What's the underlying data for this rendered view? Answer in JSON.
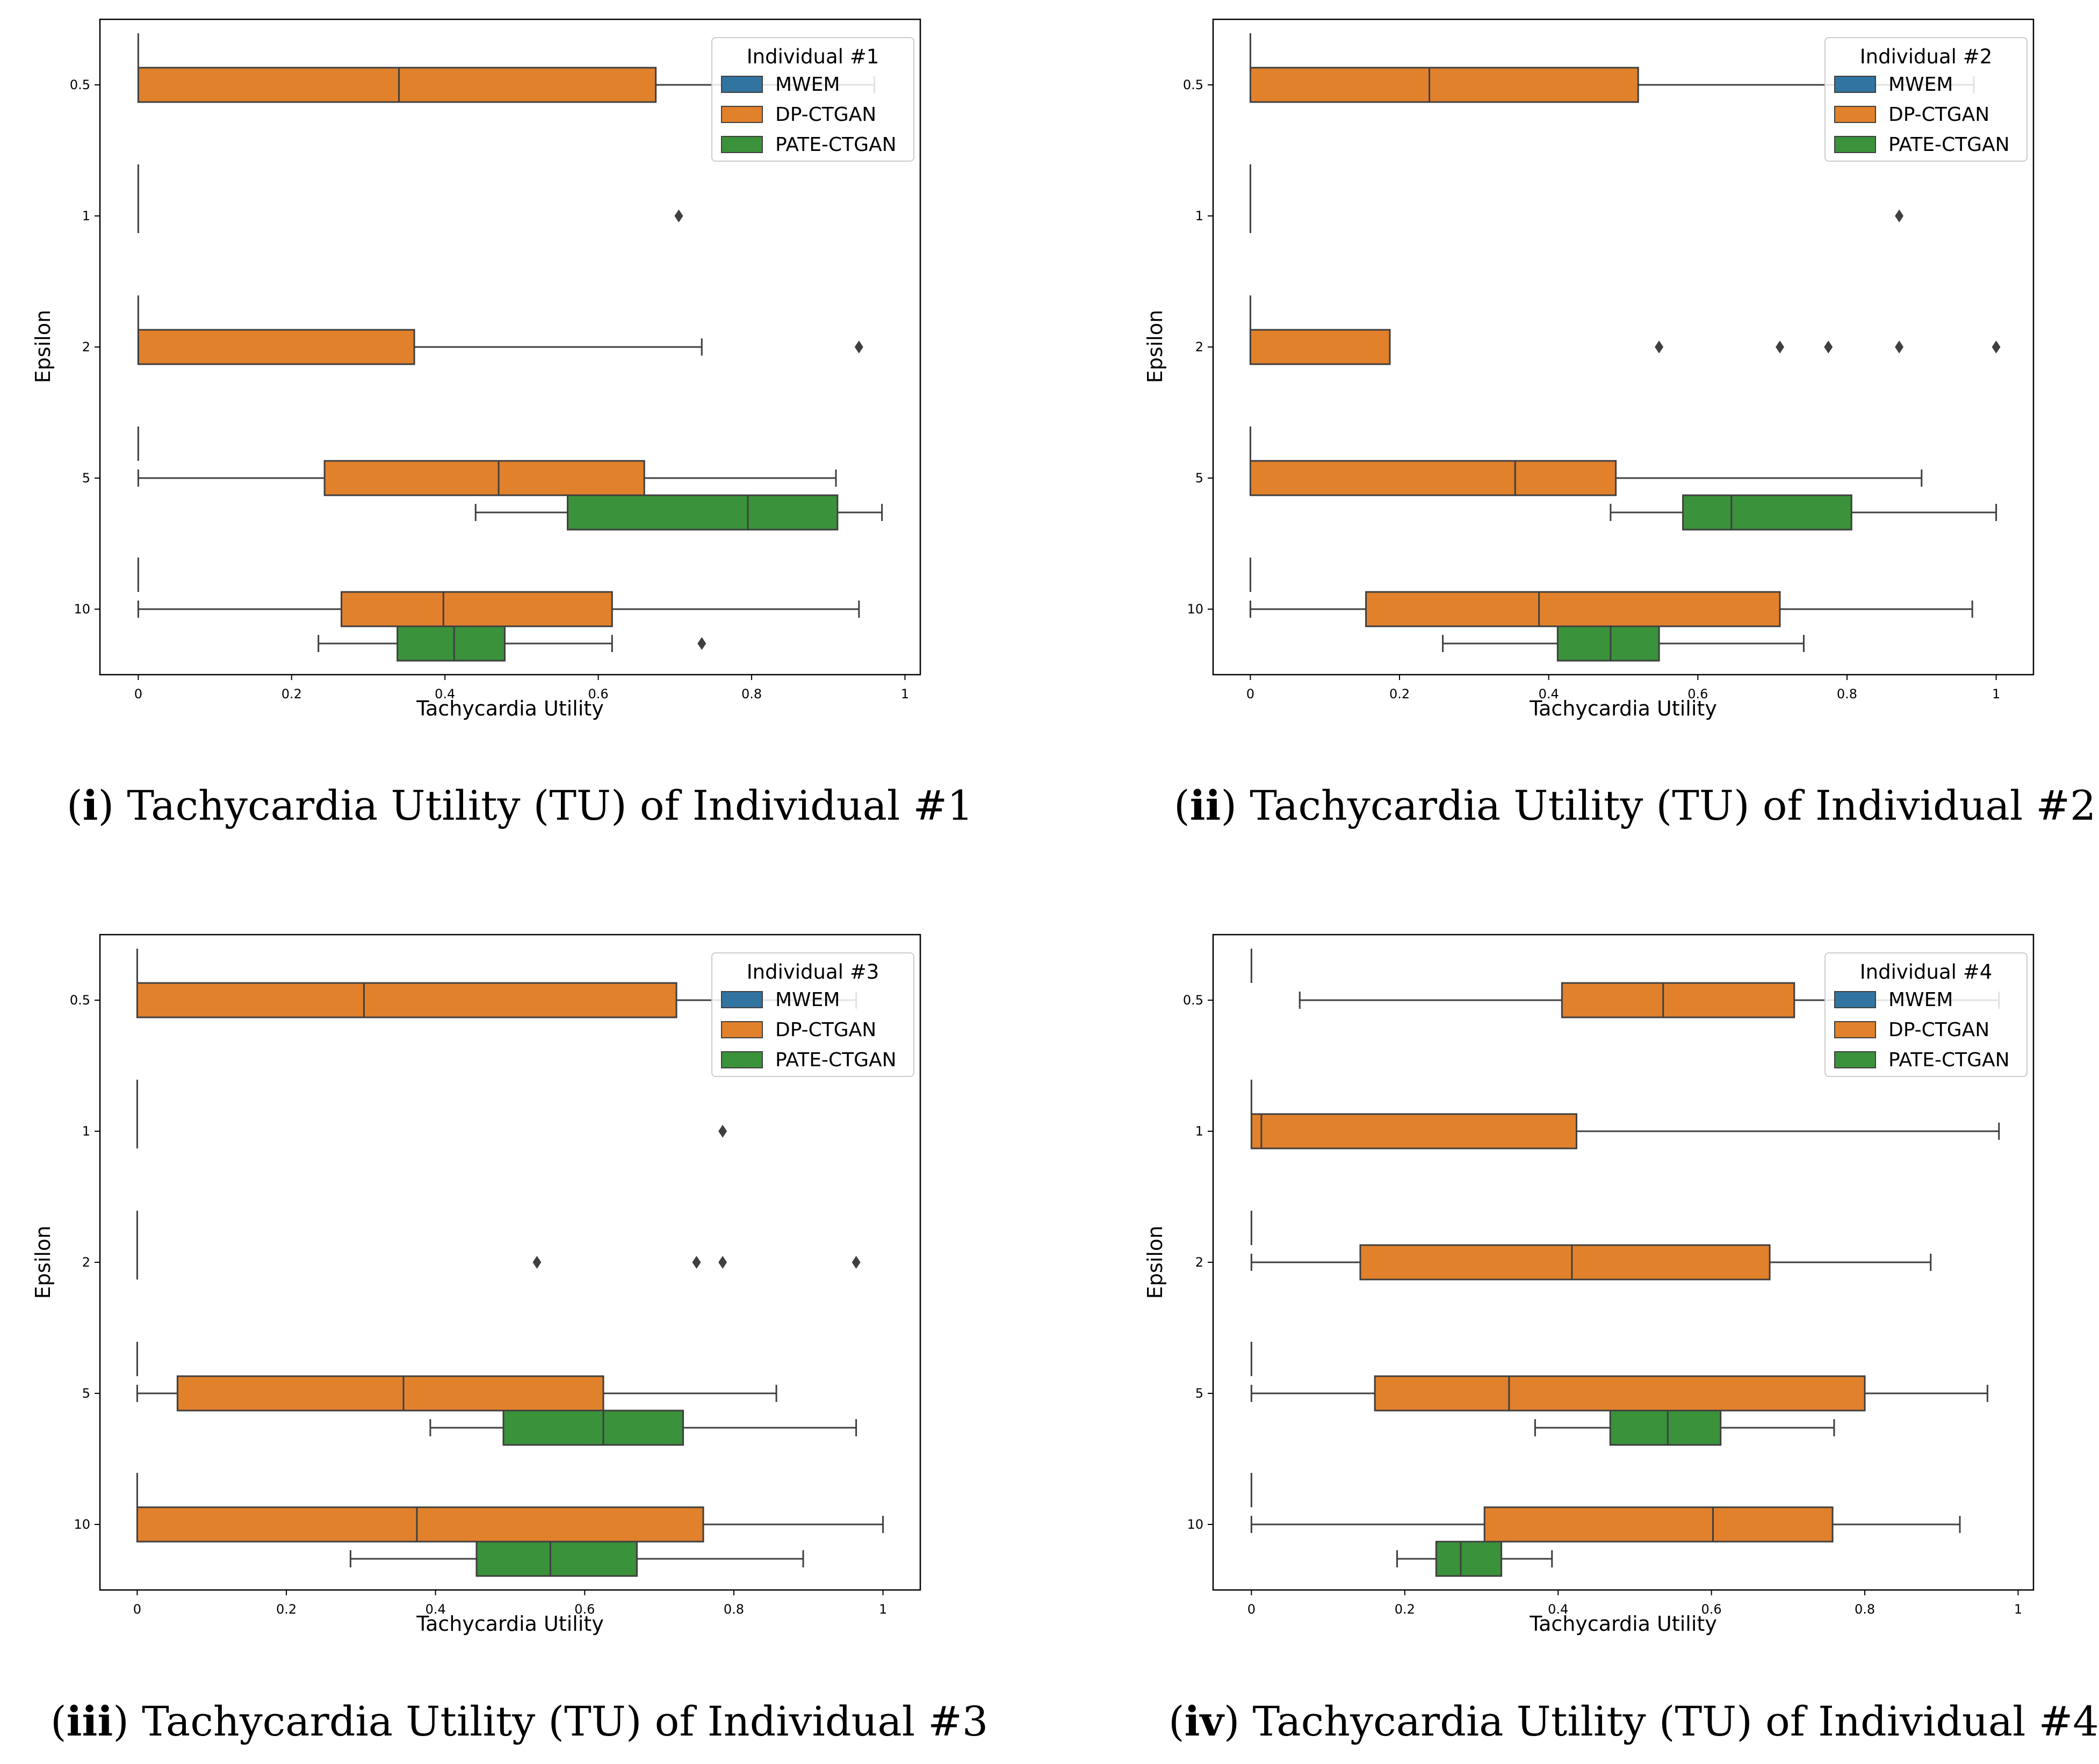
{
  "colors": {
    "MWEM": "#3274a1",
    "DP-CTGAN": "#e1812c",
    "PATE-CTGAN": "#3a923a",
    "line": "#3f3f3f",
    "frame": "#000000"
  },
  "chart_data": [
    {
      "type": "box",
      "orientation": "horizontal",
      "xlabel": "Tachycardia Utility",
      "ylabel": "Epsilon",
      "xlim": [
        -0.05,
        1.02
      ],
      "x_ticks": [
        0,
        0.2,
        0.4,
        0.6,
        0.8,
        1
      ],
      "x_tick_labels": [
        "0",
        "0.2",
        "0.4",
        "0.6",
        "0.8",
        "1"
      ],
      "categories": [
        "0.5",
        "1",
        "2",
        "5",
        "10"
      ],
      "legend": {
        "title": "Individual #1",
        "position": "top-right",
        "entries": [
          "MWEM",
          "DP-CTGAN",
          "PATE-CTGAN"
        ]
      },
      "caption": {
        "number": "i",
        "text": "Tachycardia Utility (TU) of Individual #1"
      },
      "series": [
        {
          "name": "MWEM",
          "boxes": [
            {
              "cat": "0.5",
              "min": 0,
              "q1": 0,
              "med": 0,
              "q3": 0,
              "max": 0,
              "fliers": []
            },
            {
              "cat": "1",
              "min": 0,
              "q1": 0,
              "med": 0,
              "q3": 0,
              "max": 0,
              "fliers": []
            },
            {
              "cat": "2",
              "min": 0,
              "q1": 0,
              "med": 0,
              "q3": 0,
              "max": 0,
              "fliers": []
            },
            {
              "cat": "5",
              "min": 0,
              "q1": 0,
              "med": 0,
              "q3": 0,
              "max": 0,
              "fliers": []
            },
            {
              "cat": "10",
              "min": 0,
              "q1": 0,
              "med": 0,
              "q3": 0,
              "max": 0,
              "fliers": []
            }
          ]
        },
        {
          "name": "DP-CTGAN",
          "boxes": [
            {
              "cat": "0.5",
              "min": 0,
              "q1": 0,
              "med": 0.34,
              "q3": 0.675,
              "max": 0.96,
              "fliers": []
            },
            {
              "cat": "1",
              "min": 0,
              "q1": 0,
              "med": 0,
              "q3": 0,
              "max": 0,
              "fliers": [
                0.705
              ]
            },
            {
              "cat": "2",
              "min": 0,
              "q1": 0,
              "med": 0,
              "q3": 0.36,
              "max": 0.735,
              "fliers": [
                0.94
              ]
            },
            {
              "cat": "5",
              "min": 0,
              "q1": 0.243,
              "med": 0.47,
              "q3": 0.66,
              "max": 0.91,
              "fliers": []
            },
            {
              "cat": "10",
              "min": 0,
              "q1": 0.265,
              "med": 0.398,
              "q3": 0.618,
              "max": 0.94,
              "fliers": []
            }
          ]
        },
        {
          "name": "PATE-CTGAN",
          "boxes": [
            {
              "cat": "5",
              "min": 0.44,
              "q1": 0.56,
              "med": 0.795,
              "q3": 0.912,
              "max": 0.97,
              "fliers": []
            },
            {
              "cat": "10",
              "min": 0.235,
              "q1": 0.338,
              "med": 0.412,
              "q3": 0.478,
              "max": 0.618,
              "fliers": [
                0.735
              ]
            }
          ]
        }
      ]
    },
    {
      "type": "box",
      "orientation": "horizontal",
      "xlabel": "Tachycardia Utility",
      "ylabel": "Epsilon",
      "xlim": [
        -0.05,
        1.05
      ],
      "x_ticks": [
        0,
        0.2,
        0.4,
        0.6,
        0.8,
        1
      ],
      "x_tick_labels": [
        "0",
        "0.2",
        "0.4",
        "0.6",
        "0.8",
        "1"
      ],
      "categories": [
        "0.5",
        "1",
        "2",
        "5",
        "10"
      ],
      "legend": {
        "title": "Individual #2",
        "position": "top-right",
        "entries": [
          "MWEM",
          "DP-CTGAN",
          "PATE-CTGAN"
        ]
      },
      "caption": {
        "number": "ii",
        "text": "Tachycardia Utility (TU) of Individual #2"
      },
      "series": [
        {
          "name": "MWEM",
          "boxes": [
            {
              "cat": "0.5",
              "min": 0,
              "q1": 0,
              "med": 0,
              "q3": 0,
              "max": 0,
              "fliers": []
            },
            {
              "cat": "1",
              "min": 0,
              "q1": 0,
              "med": 0,
              "q3": 0,
              "max": 0,
              "fliers": []
            },
            {
              "cat": "2",
              "min": 0,
              "q1": 0,
              "med": 0,
              "q3": 0,
              "max": 0,
              "fliers": []
            },
            {
              "cat": "5",
              "min": 0,
              "q1": 0,
              "med": 0,
              "q3": 0,
              "max": 0,
              "fliers": []
            },
            {
              "cat": "10",
              "min": 0,
              "q1": 0,
              "med": 0,
              "q3": 0,
              "max": 0,
              "fliers": []
            }
          ]
        },
        {
          "name": "DP-CTGAN",
          "boxes": [
            {
              "cat": "0.5",
              "min": 0,
              "q1": 0,
              "med": 0.24,
              "q3": 0.52,
              "max": 0.97,
              "fliers": []
            },
            {
              "cat": "1",
              "min": 0,
              "q1": 0,
              "med": 0,
              "q3": 0,
              "max": 0,
              "fliers": [
                0.87
              ]
            },
            {
              "cat": "2",
              "min": 0,
              "q1": 0,
              "med": 0,
              "q3": 0.187,
              "max": 0.187,
              "fliers": [
                0.548,
                0.71,
                0.775,
                0.87,
                1.0
              ]
            },
            {
              "cat": "5",
              "min": 0,
              "q1": 0,
              "med": 0.355,
              "q3": 0.49,
              "max": 0.9,
              "fliers": []
            },
            {
              "cat": "10",
              "min": 0,
              "q1": 0.155,
              "med": 0.387,
              "q3": 0.71,
              "max": 0.968,
              "fliers": []
            }
          ]
        },
        {
          "name": "PATE-CTGAN",
          "boxes": [
            {
              "cat": "5",
              "min": 0.483,
              "q1": 0.58,
              "med": 0.645,
              "q3": 0.806,
              "max": 1.0,
              "fliers": []
            },
            {
              "cat": "10",
              "min": 0.258,
              "q1": 0.412,
              "med": 0.483,
              "q3": 0.548,
              "max": 0.742,
              "fliers": []
            }
          ]
        }
      ]
    },
    {
      "type": "box",
      "orientation": "horizontal",
      "xlabel": "Tachycardia Utility",
      "ylabel": "Epsilon",
      "xlim": [
        -0.05,
        1.05
      ],
      "x_ticks": [
        0,
        0.2,
        0.4,
        0.6,
        0.8,
        1
      ],
      "x_tick_labels": [
        "0",
        "0.2",
        "0.4",
        "0.6",
        "0.8",
        "1"
      ],
      "categories": [
        "0.5",
        "1",
        "2",
        "5",
        "10"
      ],
      "legend": {
        "title": "Individual #3",
        "position": "top-right",
        "entries": [
          "MWEM",
          "DP-CTGAN",
          "PATE-CTGAN"
        ]
      },
      "caption": {
        "number": "iii",
        "text": "Tachycardia Utility (TU) of Individual #3"
      },
      "series": [
        {
          "name": "MWEM",
          "boxes": [
            {
              "cat": "0.5",
              "min": 0,
              "q1": 0,
              "med": 0,
              "q3": 0,
              "max": 0,
              "fliers": []
            },
            {
              "cat": "1",
              "min": 0,
              "q1": 0,
              "med": 0,
              "q3": 0,
              "max": 0,
              "fliers": []
            },
            {
              "cat": "2",
              "min": 0,
              "q1": 0,
              "med": 0,
              "q3": 0,
              "max": 0,
              "fliers": []
            },
            {
              "cat": "5",
              "min": 0,
              "q1": 0,
              "med": 0,
              "q3": 0,
              "max": 0,
              "fliers": []
            },
            {
              "cat": "10",
              "min": 0,
              "q1": 0,
              "med": 0,
              "q3": 0,
              "max": 0,
              "fliers": []
            }
          ]
        },
        {
          "name": "DP-CTGAN",
          "boxes": [
            {
              "cat": "0.5",
              "min": 0,
              "q1": 0,
              "med": 0.304,
              "q3": 0.723,
              "max": 0.964,
              "fliers": []
            },
            {
              "cat": "1",
              "min": 0,
              "q1": 0,
              "med": 0,
              "q3": 0,
              "max": 0,
              "fliers": [
                0.785
              ]
            },
            {
              "cat": "2",
              "min": 0,
              "q1": 0,
              "med": 0,
              "q3": 0,
              "max": 0,
              "fliers": [
                0.536,
                0.75,
                0.785,
                0.964
              ]
            },
            {
              "cat": "5",
              "min": 0,
              "q1": 0.054,
              "med": 0.357,
              "q3": 0.625,
              "max": 0.857,
              "fliers": []
            },
            {
              "cat": "10",
              "min": 0,
              "q1": 0,
              "med": 0.375,
              "q3": 0.759,
              "max": 1.0,
              "fliers": []
            }
          ]
        },
        {
          "name": "PATE-CTGAN",
          "boxes": [
            {
              "cat": "5",
              "min": 0.393,
              "q1": 0.491,
              "med": 0.625,
              "q3": 0.732,
              "max": 0.964,
              "fliers": []
            },
            {
              "cat": "10",
              "min": 0.286,
              "q1": 0.455,
              "med": 0.554,
              "q3": 0.67,
              "max": 0.893,
              "fliers": []
            }
          ]
        }
      ]
    },
    {
      "type": "box",
      "orientation": "horizontal",
      "xlabel": "Tachycardia Utility",
      "ylabel": "Epsilon",
      "xlim": [
        -0.05,
        1.02
      ],
      "x_ticks": [
        0,
        0.2,
        0.4,
        0.6,
        0.8,
        1
      ],
      "x_tick_labels": [
        "0",
        "0.2",
        "0.4",
        "0.6",
        "0.8",
        "1"
      ],
      "categories": [
        "0.5",
        "1",
        "2",
        "5",
        "10"
      ],
      "legend": {
        "title": "Individual #4",
        "position": "top-right",
        "entries": [
          "MWEM",
          "DP-CTGAN",
          "PATE-CTGAN"
        ]
      },
      "caption": {
        "number": "iv",
        "text": "Tachycardia Utility (TU) of Individual #4"
      },
      "series": [
        {
          "name": "MWEM",
          "boxes": [
            {
              "cat": "0.5",
              "min": 0,
              "q1": 0,
              "med": 0,
              "q3": 0,
              "max": 0,
              "fliers": []
            },
            {
              "cat": "1",
              "min": 0,
              "q1": 0,
              "med": 0,
              "q3": 0,
              "max": 0,
              "fliers": []
            },
            {
              "cat": "2",
              "min": 0,
              "q1": 0,
              "med": 0,
              "q3": 0,
              "max": 0,
              "fliers": []
            },
            {
              "cat": "5",
              "min": 0,
              "q1": 0,
              "med": 0,
              "q3": 0,
              "max": 0,
              "fliers": []
            },
            {
              "cat": "10",
              "min": 0,
              "q1": 0,
              "med": 0,
              "q3": 0,
              "max": 0,
              "fliers": []
            }
          ]
        },
        {
          "name": "DP-CTGAN",
          "boxes": [
            {
              "cat": "0.5",
              "min": 0.063,
              "q1": 0.405,
              "med": 0.537,
              "q3": 0.708,
              "max": 0.975,
              "fliers": []
            },
            {
              "cat": "1",
              "min": 0,
              "q1": 0,
              "med": 0.013,
              "q3": 0.424,
              "max": 0.975,
              "fliers": []
            },
            {
              "cat": "2",
              "min": 0,
              "q1": 0.142,
              "med": 0.418,
              "q3": 0.676,
              "max": 0.886,
              "fliers": []
            },
            {
              "cat": "5",
              "min": 0,
              "q1": 0.161,
              "med": 0.336,
              "q3": 0.8,
              "max": 0.96,
              "fliers": []
            },
            {
              "cat": "10",
              "min": 0,
              "q1": 0.304,
              "med": 0.602,
              "q3": 0.758,
              "max": 0.924,
              "fliers": []
            }
          ]
        },
        {
          "name": "PATE-CTGAN",
          "boxes": [
            {
              "cat": "5",
              "min": 0.37,
              "q1": 0.468,
              "med": 0.543,
              "q3": 0.612,
              "max": 0.76,
              "fliers": []
            },
            {
              "cat": "10",
              "min": 0.19,
              "q1": 0.241,
              "med": 0.273,
              "q3": 0.326,
              "max": 0.392,
              "fliers": []
            }
          ]
        }
      ]
    }
  ]
}
